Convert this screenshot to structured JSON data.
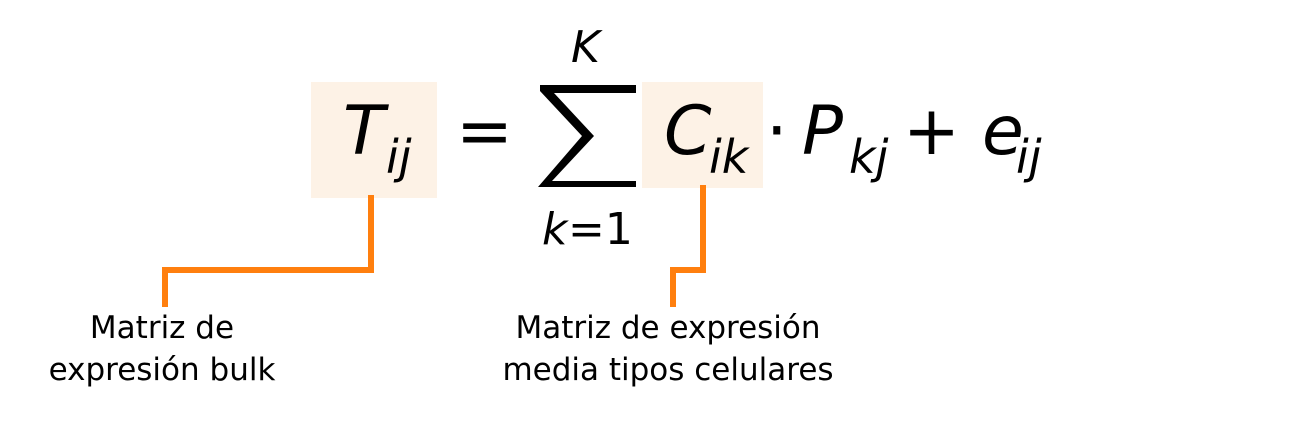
{
  "formula": {
    "T": "T",
    "T_sub": "ij",
    "equals": "=",
    "sum_upper": "K",
    "sum_lower_var": "k",
    "sum_lower_eq": "=1",
    "C": "C",
    "C_sub": "ik",
    "dot": "·",
    "P": "P",
    "P_sub": "kj",
    "plus": "+",
    "e": "e",
    "e_sub": "ij"
  },
  "labels": {
    "bulk_line1": "Matriz de",
    "bulk_line2": "expresión bulk",
    "celltype_line1": "Matriz de expresión",
    "celltype_line2": "media tipos celulares"
  },
  "colors": {
    "highlight": "#fdf2e6",
    "connector": "#ff7f0e",
    "text": "#000000"
  }
}
